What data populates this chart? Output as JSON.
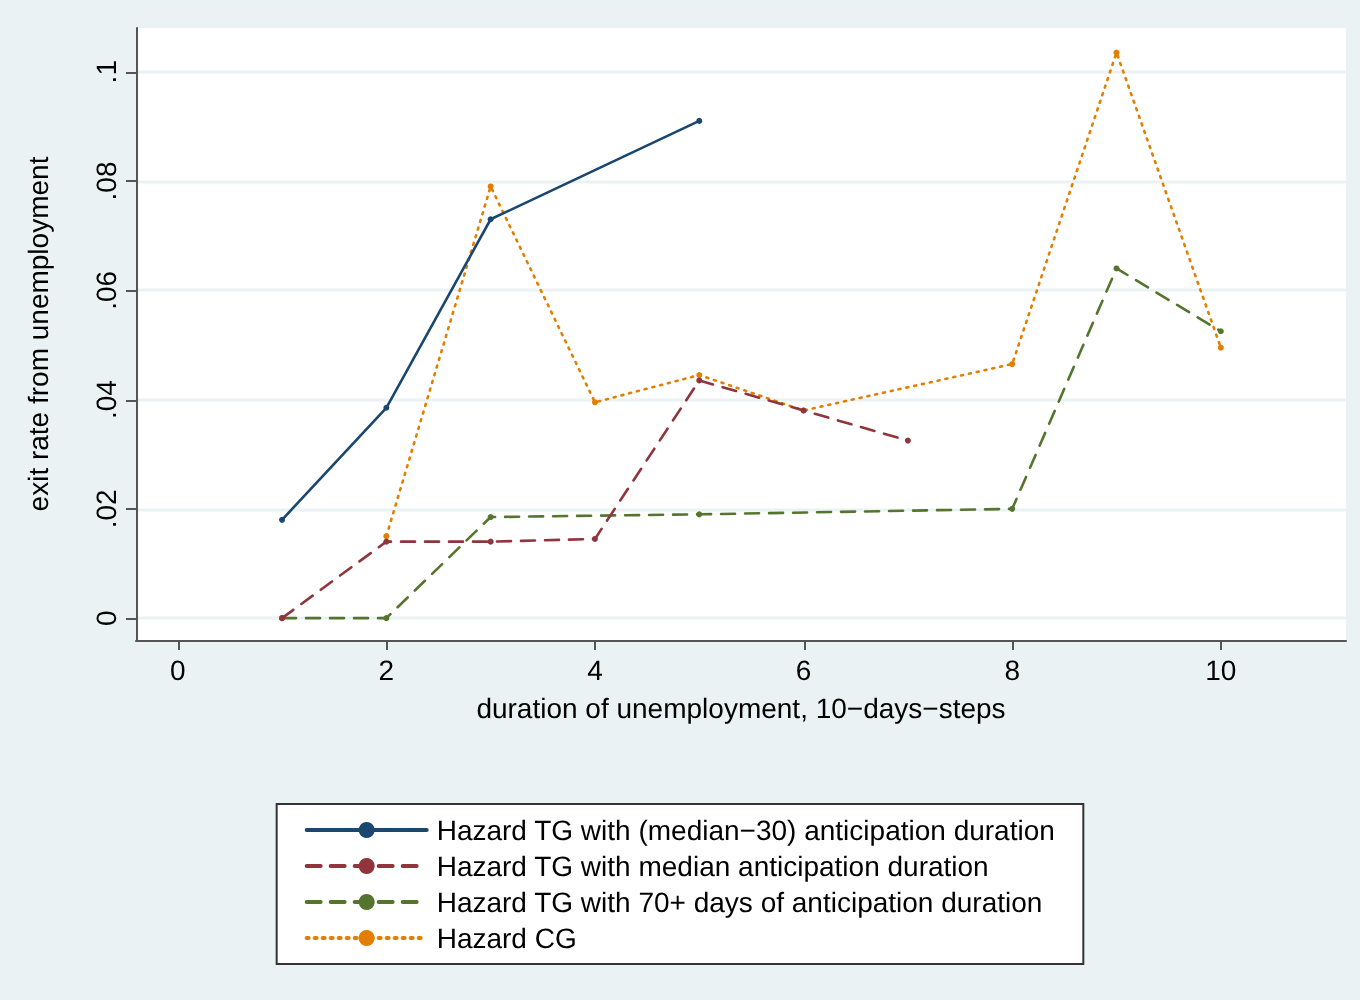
{
  "chart_data": {
    "type": "line",
    "xlabel": "duration of unemployment, 10−days−steps",
    "ylabel": "exit rate from unemployment",
    "xlim": [
      -0.4,
      11.2
    ],
    "xticks": [
      0,
      2,
      4,
      6,
      8,
      10
    ],
    "ylim": [
      -0.004,
      0.108
    ],
    "yticks": [
      0,
      {
        "value": 0.02,
        "label": ".02"
      },
      {
        "value": 0.04,
        "label": ".04"
      },
      {
        "value": 0.06,
        "label": ".06"
      },
      {
        "value": 0.08,
        "label": ".08"
      },
      {
        "value": 0.1,
        "label": ".1"
      }
    ],
    "grid": "y",
    "legend": "bottom",
    "marker": "circle",
    "series": [
      {
        "name": "Hazard TG with (median−30) anticipation duration",
        "color": "#1a476f",
        "line_style": "solid",
        "x": [
          1,
          2,
          3,
          5
        ],
        "values": [
          0.018,
          0.0385,
          0.073,
          0.091
        ]
      },
      {
        "name": "Hazard TG with median anticipation duration",
        "color": "#90353b",
        "line_style": "dashed",
        "x": [
          1,
          2,
          3,
          4,
          5,
          6,
          7
        ],
        "values": [
          0,
          0.014,
          0.014,
          0.0145,
          0.0435,
          0.038,
          0.0325
        ]
      },
      {
        "name": "Hazard TG with 70+ days of anticipation duration",
        "color": "#55752f",
        "line_style": "dashed",
        "x": [
          1,
          2,
          3,
          5,
          8,
          9,
          10
        ],
        "values": [
          0,
          0,
          0.0185,
          0.019,
          0.02,
          0.064,
          0.0525
        ]
      },
      {
        "name": "Hazard CG",
        "color": "#e37e00",
        "line_style": "dotted",
        "x": [
          2,
          3,
          4,
          5,
          6,
          8,
          9,
          10
        ],
        "values": [
          0.015,
          0.079,
          0.0395,
          0.0445,
          0.038,
          0.0465,
          0.1035,
          0.0495
        ]
      }
    ]
  }
}
